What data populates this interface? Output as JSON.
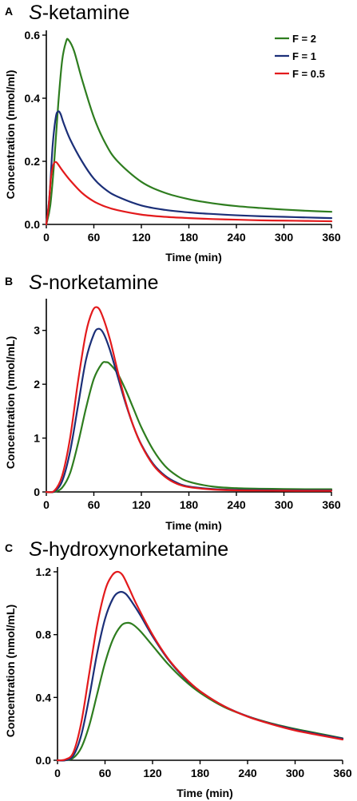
{
  "legend": [
    {
      "label": "F = 2",
      "color": "#2e7d1f"
    },
    {
      "label": "F = 1",
      "color": "#1b2f78"
    },
    {
      "label": "F = 0.5",
      "color": "#e31a1c"
    }
  ],
  "panels": [
    {
      "letter": "A",
      "title_prefix": "S",
      "title_rest": "-ketamine"
    },
    {
      "letter": "B",
      "title_prefix": "S",
      "title_rest": "-norketamine"
    },
    {
      "letter": "C",
      "title_prefix": "S",
      "title_rest": "-hydroxynorketamine"
    }
  ],
  "chart_data": [
    {
      "type": "line",
      "title": "S-ketamine",
      "xlabel": "Time (min)",
      "ylabel": "Concentration (nmol/ml)",
      "xlim": [
        0,
        360
      ],
      "ylim": [
        0,
        0.6
      ],
      "xticks": [
        0,
        60,
        120,
        180,
        240,
        300,
        360
      ],
      "yticks": [
        0.0,
        0.2,
        0.4,
        0.6
      ],
      "ytick_labels": [
        "0.0",
        "0.2",
        "0.4",
        "0.6"
      ],
      "legend_position": "top-right",
      "grid": false,
      "series": [
        {
          "name": "F = 2",
          "color": "#2e7d1f",
          "x": [
            0,
            5,
            10,
            15,
            20,
            25,
            28,
            35,
            45,
            60,
            75,
            90,
            120,
            150,
            180,
            210,
            240,
            270,
            300,
            330,
            360
          ],
          "y": [
            0,
            0.06,
            0.2,
            0.38,
            0.52,
            0.58,
            0.585,
            0.55,
            0.46,
            0.34,
            0.255,
            0.2,
            0.135,
            0.1,
            0.08,
            0.067,
            0.058,
            0.052,
            0.047,
            0.043,
            0.04
          ]
        },
        {
          "name": "F = 1",
          "color": "#1b2f78",
          "x": [
            0,
            4,
            8,
            12,
            15,
            18,
            22,
            30,
            45,
            60,
            75,
            90,
            120,
            150,
            180,
            210,
            240,
            270,
            300,
            330,
            360
          ],
          "y": [
            0,
            0.09,
            0.25,
            0.34,
            0.358,
            0.35,
            0.32,
            0.27,
            0.2,
            0.145,
            0.11,
            0.088,
            0.06,
            0.046,
            0.038,
            0.033,
            0.029,
            0.026,
            0.024,
            0.022,
            0.02
          ]
        },
        {
          "name": "F = 0.5",
          "color": "#e31a1c",
          "x": [
            0,
            3,
            6,
            9,
            12,
            15,
            20,
            30,
            45,
            60,
            75,
            90,
            120,
            150,
            180,
            210,
            240,
            270,
            300,
            330,
            360
          ],
          "y": [
            0,
            0.06,
            0.15,
            0.19,
            0.198,
            0.19,
            0.172,
            0.14,
            0.1,
            0.073,
            0.056,
            0.045,
            0.031,
            0.024,
            0.02,
            0.017,
            0.015,
            0.013,
            0.012,
            0.011,
            0.01
          ]
        }
      ]
    },
    {
      "type": "line",
      "title": "S-norketamine",
      "xlabel": "Time (min)",
      "ylabel": "Concentration (nmol/mL)",
      "xlim": [
        0,
        360
      ],
      "ylim": [
        0,
        3.5
      ],
      "xticks": [
        0,
        60,
        120,
        180,
        240,
        300,
        360
      ],
      "yticks": [
        0,
        1,
        2,
        3
      ],
      "ytick_labels": [
        "0",
        "1",
        "2",
        "3"
      ],
      "grid": false,
      "series": [
        {
          "name": "F = 2",
          "color": "#2e7d1f",
          "x": [
            0,
            10,
            20,
            30,
            40,
            50,
            60,
            70,
            75,
            80,
            90,
            100,
            110,
            120,
            135,
            150,
            165,
            180,
            210,
            240,
            270,
            300,
            330,
            360
          ],
          "y": [
            0,
            0.0,
            0.08,
            0.35,
            0.9,
            1.55,
            2.1,
            2.38,
            2.41,
            2.38,
            2.2,
            1.9,
            1.55,
            1.2,
            0.78,
            0.48,
            0.3,
            0.19,
            0.1,
            0.07,
            0.06,
            0.055,
            0.05,
            0.05
          ]
        },
        {
          "name": "F = 1",
          "color": "#1b2f78",
          "x": [
            0,
            10,
            20,
            30,
            40,
            50,
            60,
            66,
            72,
            80,
            90,
            100,
            110,
            120,
            135,
            150,
            165,
            180,
            210,
            240,
            270,
            300,
            330,
            360
          ],
          "y": [
            0,
            0.01,
            0.2,
            0.75,
            1.6,
            2.45,
            2.93,
            3.03,
            2.95,
            2.65,
            2.15,
            1.65,
            1.22,
            0.88,
            0.52,
            0.3,
            0.17,
            0.1,
            0.055,
            0.04,
            0.035,
            0.03,
            0.03,
            0.03
          ]
        },
        {
          "name": "F = 0.5",
          "color": "#e31a1c",
          "x": [
            0,
            10,
            20,
            30,
            40,
            50,
            58,
            64,
            70,
            80,
            90,
            100,
            110,
            120,
            135,
            150,
            165,
            180,
            210,
            240,
            270,
            300,
            330,
            360
          ],
          "y": [
            0,
            0.02,
            0.3,
            1.0,
            2.05,
            2.95,
            3.35,
            3.43,
            3.3,
            2.85,
            2.25,
            1.68,
            1.22,
            0.87,
            0.5,
            0.28,
            0.15,
            0.09,
            0.045,
            0.03,
            0.025,
            0.022,
            0.02,
            0.02
          ]
        }
      ]
    },
    {
      "type": "line",
      "title": "S-hydroxynorketamine",
      "xlabel": "Time (min)",
      "ylabel": "Concentration (nmol/mL)",
      "xlim": [
        0,
        360
      ],
      "ylim": [
        0,
        1.2
      ],
      "xticks": [
        0,
        60,
        120,
        180,
        240,
        300,
        360
      ],
      "yticks": [
        0.0,
        0.4,
        0.8,
        1.2
      ],
      "ytick_labels": [
        "0.0",
        "0.4",
        "0.8",
        "1.2"
      ],
      "grid": false,
      "series": [
        {
          "name": "F = 2",
          "color": "#2e7d1f",
          "x": [
            0,
            10,
            20,
            30,
            40,
            50,
            60,
            70,
            80,
            88,
            95,
            105,
            120,
            140,
            160,
            180,
            210,
            240,
            270,
            300,
            330,
            360
          ],
          "y": [
            0,
            0.0,
            0.015,
            0.08,
            0.22,
            0.42,
            0.62,
            0.77,
            0.855,
            0.875,
            0.865,
            0.82,
            0.73,
            0.61,
            0.51,
            0.43,
            0.34,
            0.28,
            0.235,
            0.2,
            0.17,
            0.14
          ]
        },
        {
          "name": "F = 1",
          "color": "#1b2f78",
          "x": [
            0,
            10,
            20,
            30,
            40,
            50,
            60,
            70,
            78,
            86,
            95,
            105,
            120,
            140,
            160,
            180,
            210,
            240,
            270,
            300,
            330,
            360
          ],
          "y": [
            0,
            0.0,
            0.03,
            0.16,
            0.4,
            0.68,
            0.9,
            1.03,
            1.07,
            1.06,
            1.0,
            0.92,
            0.79,
            0.64,
            0.525,
            0.44,
            0.345,
            0.28,
            0.232,
            0.195,
            0.165,
            0.138
          ]
        },
        {
          "name": "F = 0.5",
          "color": "#e31a1c",
          "x": [
            0,
            10,
            20,
            30,
            40,
            50,
            60,
            68,
            75,
            82,
            90,
            100,
            120,
            140,
            160,
            180,
            210,
            240,
            270,
            300,
            330,
            360
          ],
          "y": [
            0,
            0.005,
            0.05,
            0.24,
            0.55,
            0.86,
            1.08,
            1.17,
            1.2,
            1.18,
            1.1,
            0.99,
            0.8,
            0.645,
            0.53,
            0.44,
            0.345,
            0.278,
            0.23,
            0.19,
            0.16,
            0.132
          ]
        }
      ]
    }
  ]
}
